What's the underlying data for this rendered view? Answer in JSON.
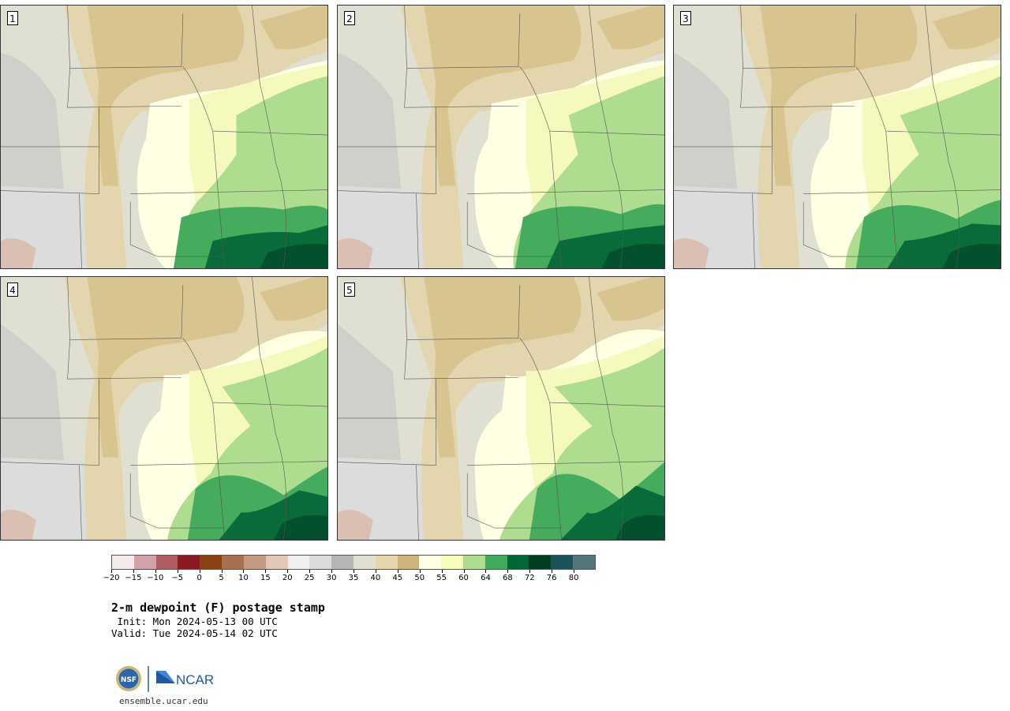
{
  "panels": [
    {
      "label": "1",
      "variant": 0
    },
    {
      "label": "2",
      "variant": 1
    },
    {
      "label": "3",
      "variant": 2
    },
    {
      "label": "4",
      "variant": 3
    },
    {
      "label": "5",
      "variant": 4
    }
  ],
  "colorbar": {
    "colors": [
      "#f5ebeb",
      "#d2a2a8",
      "#b25d63",
      "#8b1a23",
      "#8a4210",
      "#a8704d",
      "#c49b82",
      "#e2c9b7",
      "#efefef",
      "#dcdcdc",
      "#b5b5b5",
      "#e0e0d2",
      "#e5d5ab",
      "#cdb57b",
      "#ffffe5",
      "#f7fcb9",
      "#addd8e",
      "#41ab5d",
      "#006837",
      "#003d21",
      "#1c5259",
      "#56767d"
    ],
    "ticks": [
      "−20",
      "−15",
      "−10",
      "−5",
      "0",
      "5",
      "10",
      "15",
      "20",
      "25",
      "30",
      "35",
      "40",
      "45",
      "50",
      "55",
      "60",
      "64",
      "68",
      "72",
      "76",
      "80"
    ]
  },
  "title": "2-m dewpoint (F) postage stamp",
  "init": " Init: Mon 2024-05-13 00 UTC",
  "valid": "Valid: Tue 2024-05-14 02 UTC",
  "logos": {
    "nsf_text": "NSF",
    "ncar_text": "NCAR"
  },
  "site": "ensemble.ucar.edu"
}
